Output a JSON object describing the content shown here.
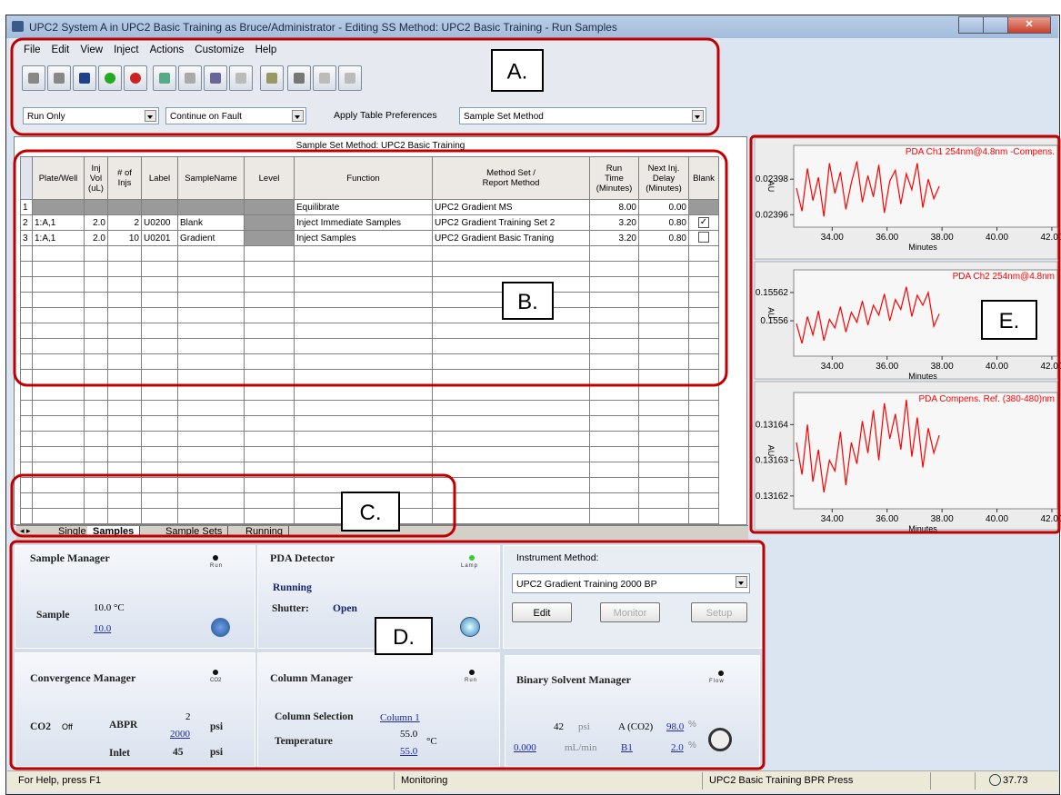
{
  "window": {
    "title": "UPC2 System A in UPC2 Basic Training as Bruce/Administrator - Editing SS Method: UPC2 Basic Training - Run Samples"
  },
  "menu": [
    "File",
    "Edit",
    "View",
    "Inject",
    "Actions",
    "Customize",
    "Help"
  ],
  "toolbar": {
    "run_mode": "Run Only",
    "fault_mode": "Continue on Fault",
    "preferences_label": "Apply Table Preferences",
    "preferences": "Sample Set Method"
  },
  "callouts": [
    "A.",
    "B.",
    "C.",
    "D.",
    "E."
  ],
  "table": {
    "caption": "Sample Set Method: UPC2 Basic Training",
    "headers": [
      "Plate/Well",
      "Inj\nVol\n(uL)",
      "# of\nInjs",
      "Label",
      "SampleName",
      "Level",
      "Function",
      "Method Set /\nReport Method",
      "Run\nTime\n(Minutes)",
      "Next Inj.\nDelay\n(Minutes)",
      "Blank"
    ],
    "rows": [
      [
        "1",
        null,
        null,
        null,
        null,
        null,
        null,
        "Equilibrate",
        "UPC2 Gradient MS",
        "8.00",
        "0.00"
      ],
      [
        "2",
        "1:A,1",
        "2.0",
        "2",
        "U0200",
        "Blank",
        null,
        "Inject Immediate Samples",
        "UPC2 Gradient Training Set 2",
        "3.20",
        "0.80"
      ],
      [
        "3",
        "1:A,1",
        "2.0",
        "10",
        "U0201",
        "Gradient",
        null,
        "Inject Samples",
        "UPC2 Gradient Basic Traning",
        "3.20",
        "0.80"
      ]
    ],
    "blank": [
      null,
      true,
      false
    ]
  },
  "tabs": [
    "Single",
    "Samples",
    "Sample Sets",
    "Running"
  ],
  "panels": {
    "sample_manager": {
      "title": "Sample Manager",
      "led": "Run",
      "label": "Sample",
      "temp": "10.0 °C",
      "setpoint": "10.0"
    },
    "pda": {
      "title": "PDA Detector",
      "led": "Lamp",
      "state": "Running",
      "shutter_label": "Shutter:",
      "shutter": "Open"
    },
    "instrument": {
      "label": "Instrument Method:",
      "method": "UPC2 Gradient Training 2000 BP",
      "buttons": [
        "Edit",
        "Monitor",
        "Setup"
      ]
    },
    "convergence": {
      "title": "Convergence Manager",
      "led": "CO2",
      "co2": "CO2",
      "co2_state": "Off",
      "abpr": "ABPR",
      "abpr_value": "2",
      "abpr_set": "2000",
      "unit1": "psi",
      "inlet": "Inlet",
      "inlet_value": "45",
      "unit2": "psi"
    },
    "column": {
      "title": "Column Manager",
      "led": "Run",
      "selection_label": "Column Selection",
      "selection": "Column 1",
      "temp_label": "Temperature",
      "temp": "55.0",
      "unit": "°C",
      "temp_set": "55.0"
    },
    "binary": {
      "title": "Binary Solvent Manager",
      "led": "Flow",
      "pressure": "42",
      "pressure_unit": "psi",
      "a_label": "A (CO2)",
      "a_value": "98.0",
      "a_unit": "%",
      "flow": "0.000",
      "flow_unit": "mL/min",
      "b_label": "B1",
      "b_value": "2.0",
      "b_unit": "%"
    }
  },
  "charts": [
    {
      "type": "line",
      "title": "PDA Ch1 254nm@4.8nm -Compens.",
      "color": "#ff0000",
      "xlabel": "Minutes",
      "ylabel": "AU",
      "x": [
        32.7,
        32.9,
        33.1,
        33.3,
        33.5,
        33.7,
        33.9,
        34.1,
        34.3,
        34.5,
        34.7,
        34.9,
        35.1,
        35.3,
        35.5,
        35.7,
        35.9,
        36.1,
        36.3,
        36.5,
        36.7,
        36.9,
        37.1,
        37.3,
        37.5,
        37.7,
        37.9
      ],
      "values": [
        0.023975,
        0.023962,
        0.023986,
        0.023968,
        0.023981,
        0.023959,
        0.023989,
        0.023972,
        0.023984,
        0.023963,
        0.023978,
        0.02399,
        0.023967,
        0.023982,
        0.02397,
        0.023988,
        0.023961,
        0.023979,
        0.023985,
        0.023966,
        0.023983,
        0.023974,
        0.023989,
        0.023964,
        0.02398,
        0.023969,
        0.023976
      ],
      "xlim": [
        32.6,
        42.2
      ],
      "ylim": [
        0.023953,
        0.023999
      ],
      "yticks": [
        0.02396,
        0.02398
      ],
      "xticks": [
        {
          "value": 34,
          "label": "34.00"
        },
        {
          "value": 36,
          "label": "36.00"
        },
        {
          "value": 38,
          "label": "38.00"
        },
        {
          "value": 40,
          "label": "40.00"
        },
        {
          "value": 42,
          "label": "42.00"
        }
      ]
    },
    {
      "type": "line",
      "title": "PDA Ch2 254nm@4.8nm",
      "color": "#ff0000",
      "xlabel": "Minutes",
      "ylabel": "AU",
      "x": [
        32.7,
        32.9,
        33.1,
        33.3,
        33.5,
        33.7,
        33.9,
        34.1,
        34.3,
        34.5,
        34.7,
        34.9,
        35.1,
        35.3,
        35.5,
        35.7,
        35.9,
        36.1,
        36.3,
        36.5,
        36.7,
        36.9,
        37.1,
        37.3,
        37.5,
        37.7,
        37.9
      ],
      "values": [
        0.155598,
        0.155584,
        0.155603,
        0.15559,
        0.155607,
        0.155586,
        0.155601,
        0.155595,
        0.15561,
        0.155592,
        0.155606,
        0.155599,
        0.155614,
        0.155597,
        0.155611,
        0.155604,
        0.155619,
        0.1556,
        0.155615,
        0.155608,
        0.155624,
        0.155603,
        0.155618,
        0.155611,
        0.15562,
        0.155596,
        0.155605
      ],
      "xlim": [
        32.6,
        42.2
      ],
      "ylim": [
        0.155575,
        0.155636
      ],
      "yticks": [
        0.1556,
        0.15562
      ],
      "xticks": [
        {
          "value": 34,
          "label": "34.00"
        },
        {
          "value": 36,
          "label": "36.00"
        },
        {
          "value": 38,
          "label": "38.00"
        },
        {
          "value": 40,
          "label": "40.00"
        },
        {
          "value": 42,
          "label": "42.00"
        }
      ]
    },
    {
      "type": "line",
      "title": "PDA Compens. Ref. (380-480)nm",
      "color": "#ff0000",
      "xlabel": "Minutes",
      "ylabel": "AU",
      "x": [
        32.7,
        32.9,
        33.1,
        33.3,
        33.5,
        33.7,
        33.9,
        34.1,
        34.3,
        34.5,
        34.7,
        34.9,
        35.1,
        35.3,
        35.5,
        35.7,
        35.9,
        36.1,
        36.3,
        36.5,
        36.7,
        36.9,
        37.1,
        37.3,
        37.5,
        37.7,
        37.9
      ],
      "values": [
        0.131635,
        0.131626,
        0.13164,
        0.131624,
        0.131633,
        0.131621,
        0.13163,
        0.131627,
        0.131638,
        0.131623,
        0.131635,
        0.131629,
        0.131641,
        0.131632,
        0.131644,
        0.13163,
        0.131646,
        0.131636,
        0.131643,
        0.131633,
        0.131647,
        0.131631,
        0.131642,
        0.131628,
        0.131639,
        0.131632,
        0.131637
      ],
      "xlim": [
        32.6,
        42.2
      ],
      "ylim": [
        0.1316164,
        0.131649
      ],
      "yticks": [
        0.13162,
        0.13163,
        0.13164
      ],
      "xticks": [
        {
          "value": 34,
          "label": "34.00"
        },
        {
          "value": 36,
          "label": "36.00"
        },
        {
          "value": 38,
          "label": "38.00"
        },
        {
          "value": 40,
          "label": "40.00"
        },
        {
          "value": 42,
          "label": "42.00"
        }
      ]
    }
  ],
  "status": [
    "For Help, press F1",
    "Monitoring",
    "UPC2 Basic Training BPR Press",
    "37.73"
  ]
}
